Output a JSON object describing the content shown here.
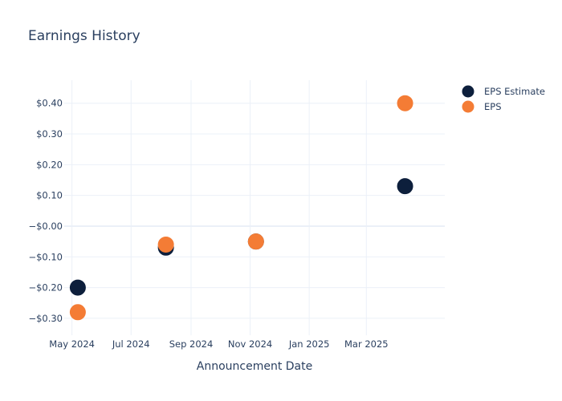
{
  "chart_data": {
    "type": "scatter",
    "title": "Earnings History",
    "xlabel": "Announcement Date",
    "ylabel": "",
    "x_ticks": [
      {
        "date": "2024-05-01",
        "label": "May 2024"
      },
      {
        "date": "2024-07-01",
        "label": "Jul 2024"
      },
      {
        "date": "2024-09-01",
        "label": "Sep 2024"
      },
      {
        "date": "2024-11-01",
        "label": "Nov 2024"
      },
      {
        "date": "2025-01-01",
        "label": "Jan 2025"
      },
      {
        "date": "2025-03-01",
        "label": "Mar 2025"
      }
    ],
    "y_ticks": [
      {
        "value": 0.4,
        "label": "$0.40"
      },
      {
        "value": 0.3,
        "label": "$0.30"
      },
      {
        "value": 0.2,
        "label": "$0.20"
      },
      {
        "value": 0.1,
        "label": "$0.10"
      },
      {
        "value": 0.0,
        "label": "−$0.00"
      },
      {
        "value": -0.1,
        "label": "−$0.10"
      },
      {
        "value": -0.2,
        "label": "−$0.20"
      },
      {
        "value": -0.3,
        "label": "−$0.30"
      }
    ],
    "xlim": [
      "2024-04-23",
      "2025-05-21"
    ],
    "ylim": [
      -0.355,
      0.475
    ],
    "grid": true,
    "legend_position": "top-right",
    "series": [
      {
        "name": "EPS Estimate",
        "color": "#0d1f3c",
        "points": [
          {
            "x": "2024-05-07",
            "y": -0.2
          },
          {
            "x": "2024-08-06",
            "y": -0.07
          },
          {
            "x": "2024-11-07",
            "y": -0.05
          },
          {
            "x": "2025-04-10",
            "y": 0.13
          }
        ]
      },
      {
        "name": "EPS",
        "color": "#f47c35",
        "points": [
          {
            "x": "2024-05-07",
            "y": -0.28
          },
          {
            "x": "2024-08-06",
            "y": -0.06
          },
          {
            "x": "2024-11-07",
            "y": -0.05
          },
          {
            "x": "2025-04-10",
            "y": 0.4
          }
        ]
      }
    ]
  }
}
